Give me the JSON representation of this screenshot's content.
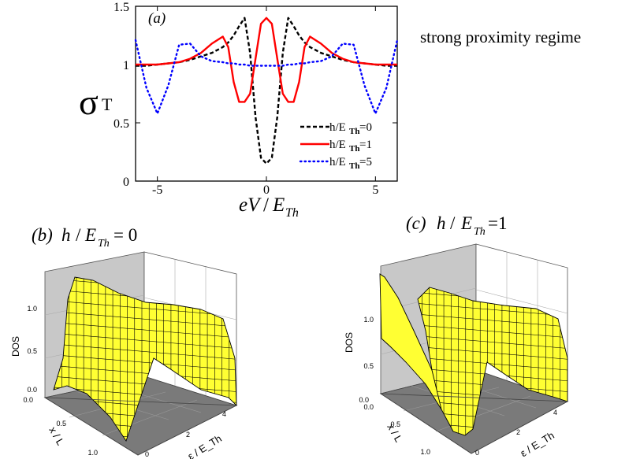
{
  "colors": {
    "series_h0": "#000000",
    "series_h1": "#ff0000",
    "series_h5": "#0000ff",
    "surface_fill": "#ffff33",
    "surface_mesh": "#000000",
    "wall_fill": "#c8c8c8",
    "floor_fill": "#7a7a7a"
  },
  "chart_data": [
    {
      "type": "line",
      "panel_tag": "(a)",
      "side_note": "strong proximity regime",
      "xlabel": "eV/E_Th",
      "ylabel": "σ_T",
      "xlim": [
        -6,
        6
      ],
      "ylim": [
        0,
        1.5
      ],
      "x_ticks": [
        -5,
        0,
        5
      ],
      "y_ticks": [
        0,
        0.5,
        1,
        1.5
      ],
      "y_tick_labels": [
        "0",
        "0.5",
        "1",
        "1.5"
      ],
      "legend_position": "lower-right",
      "x": [
        -6,
        -5.5,
        -5,
        -4.5,
        -4,
        -3.5,
        -3,
        -2.5,
        -2,
        -1.75,
        -1.5,
        -1.25,
        -1,
        -0.75,
        -0.5,
        -0.25,
        0,
        0.25,
        0.5,
        0.75,
        1,
        1.25,
        1.5,
        1.75,
        2,
        2.5,
        3,
        3.5,
        4,
        4.5,
        5,
        5.5,
        6
      ],
      "series": [
        {
          "name": "h/E_Th=0",
          "style": "dashed",
          "values": [
            0.99,
            0.99,
            1.0,
            1.01,
            1.02,
            1.04,
            1.07,
            1.1,
            1.15,
            1.19,
            1.25,
            1.33,
            1.4,
            1.1,
            0.55,
            0.2,
            0.15,
            0.2,
            0.55,
            1.1,
            1.4,
            1.33,
            1.25,
            1.19,
            1.15,
            1.1,
            1.07,
            1.04,
            1.02,
            1.01,
            1.0,
            0.99,
            0.99
          ]
        },
        {
          "name": "h/E_Th=1",
          "style": "solid",
          "values": [
            1.0,
            1.0,
            1.0,
            1.01,
            1.02,
            1.05,
            1.1,
            1.18,
            1.24,
            1.15,
            0.85,
            0.68,
            0.68,
            0.75,
            1.05,
            1.35,
            1.4,
            1.35,
            1.05,
            0.75,
            0.68,
            0.68,
            0.85,
            1.15,
            1.24,
            1.18,
            1.1,
            1.05,
            1.02,
            1.01,
            1.0,
            1.0,
            1.0
          ]
        },
        {
          "name": "h/E_Th=5",
          "style": "dotted",
          "values": [
            1.21,
            0.8,
            0.58,
            0.82,
            1.17,
            1.18,
            1.07,
            1.03,
            1.02,
            1.01,
            1.01,
            1.0,
            1.0,
            0.99,
            0.99,
            0.99,
            0.99,
            0.99,
            0.99,
            0.99,
            1.0,
            1.0,
            1.01,
            1.01,
            1.02,
            1.03,
            1.07,
            1.18,
            1.17,
            0.82,
            0.58,
            0.8,
            1.21
          ]
        }
      ]
    },
    {
      "type": "surface",
      "panel_tag": "(b)",
      "panel_title": "h / E_Th = 0",
      "zlabel": "DOS",
      "xlabel": "x / L",
      "ylabel": "ε / E_Th",
      "z_ticks": [
        "0.0",
        "0.5",
        "1.0"
      ],
      "x_ticks": [
        "0.0",
        "0.5",
        "1.0"
      ],
      "y_ticks": [
        "0",
        "2",
        "4"
      ]
    },
    {
      "type": "surface",
      "panel_tag": "(c)",
      "panel_title": "h / E_Th = 1",
      "zlabel": "DOS",
      "xlabel": "x / L",
      "ylabel": "ε / E_Th",
      "z_ticks": [
        "0.0",
        "0.5",
        "1.0"
      ],
      "x_ticks": [
        "0.0",
        "0.5",
        "1.0"
      ],
      "y_ticks": [
        "0",
        "2",
        "4"
      ]
    }
  ]
}
